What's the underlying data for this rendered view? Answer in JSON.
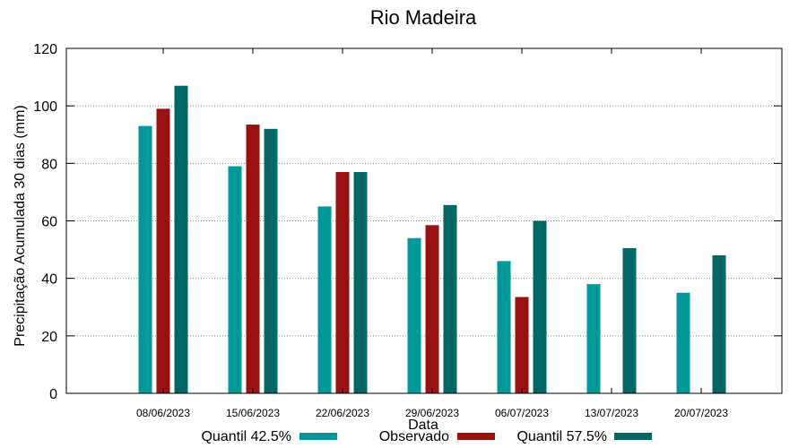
{
  "chart_data": {
    "type": "bar",
    "title": "Rio Madeira",
    "xlabel": "Data",
    "ylabel": "Precipitação Acumulada 30 dias (mm)",
    "ylim": [
      0,
      120
    ],
    "yticks": [
      0,
      20,
      40,
      60,
      80,
      100,
      120
    ],
    "grid": true,
    "legend_position": "bottom",
    "categories": [
      "08/06/2023",
      "15/06/2023",
      "22/06/2023",
      "29/06/2023",
      "06/07/2023",
      "13/07/2023",
      "20/07/2023"
    ],
    "series": [
      {
        "name": "Quantil 42.5%",
        "color": "#009999",
        "values": [
          93,
          79,
          65,
          54,
          46,
          38,
          35
        ]
      },
      {
        "name": "Observado",
        "color": "#991111",
        "values": [
          99,
          93.5,
          77,
          58.5,
          33.5,
          null,
          null
        ]
      },
      {
        "name": "Quantil 57.5%",
        "color": "#006666",
        "values": [
          107,
          92,
          77,
          65.5,
          60,
          50.5,
          48
        ]
      }
    ]
  }
}
